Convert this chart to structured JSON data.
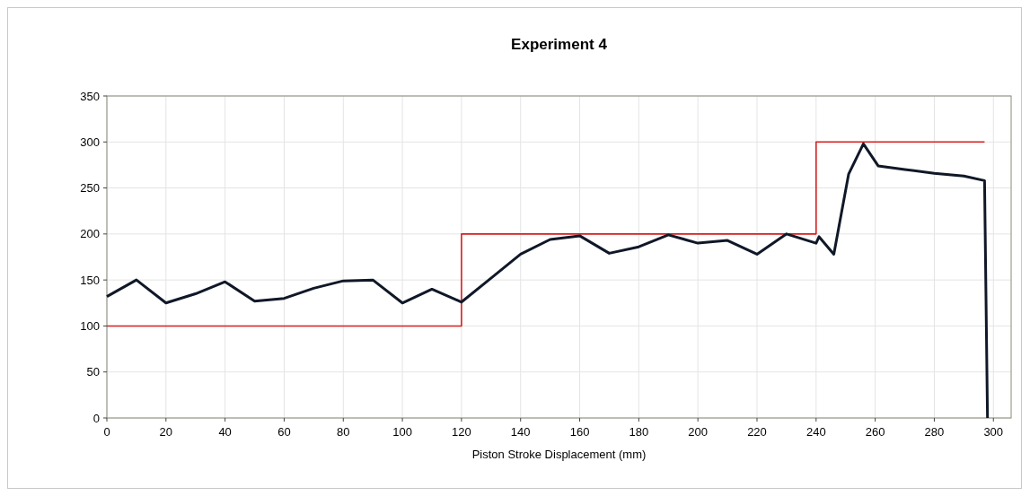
{
  "chart_data": {
    "type": "line",
    "title": "Experiment 4",
    "xlabel": "Piston Stroke Displacement (mm)",
    "xlim": [
      0,
      306
    ],
    "xticks": [
      0,
      20,
      40,
      60,
      80,
      100,
      120,
      140,
      160,
      180,
      200,
      220,
      240,
      260,
      280,
      300
    ],
    "ylim": [
      0,
      350
    ],
    "yticks": [
      0,
      50,
      100,
      150,
      200,
      250,
      300,
      350
    ],
    "grid": true,
    "marker": "none",
    "line_style": "solid",
    "series": [
      {
        "color": "#d62020",
        "x": [
          0,
          120,
          120,
          240,
          240,
          297
        ],
        "values": [
          100,
          100,
          200,
          200,
          300,
          300
        ]
      },
      {
        "color": "#101828",
        "x": [
          0,
          10,
          20,
          30,
          40,
          50,
          60,
          70,
          80,
          90,
          100,
          110,
          120,
          130,
          140,
          150,
          160,
          170,
          180,
          190,
          200,
          210,
          220,
          230,
          240,
          241,
          246,
          251,
          256,
          261,
          270,
          280,
          290,
          297,
          298
        ],
        "values": [
          132,
          150,
          125,
          135,
          148,
          127,
          130,
          141,
          149,
          150,
          125,
          140,
          126,
          152,
          178,
          194,
          198,
          179,
          186,
          199,
          190,
          193,
          178,
          200,
          190,
          197,
          178,
          265,
          298,
          274,
          270,
          266,
          263,
          258,
          0
        ]
      }
    ]
  }
}
